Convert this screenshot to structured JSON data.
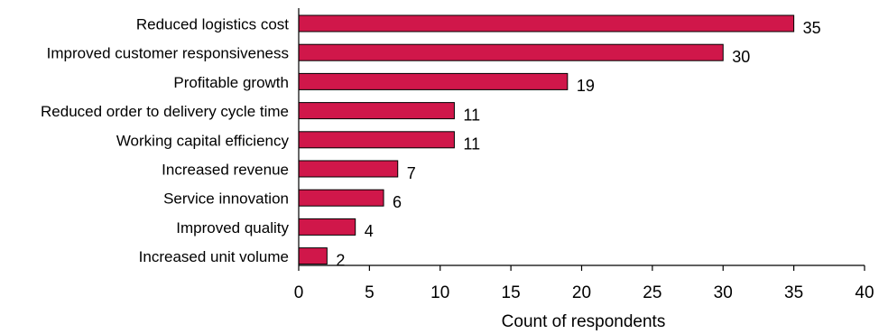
{
  "chart_data": {
    "type": "bar",
    "orientation": "horizontal",
    "title": "",
    "xlabel": "Count of respondents",
    "ylabel": "",
    "xlim": [
      0,
      40
    ],
    "xticks": [
      "0",
      "5",
      "10",
      "15",
      "20",
      "25",
      "30",
      "35",
      "40"
    ],
    "grid": false,
    "bar_color": "#d0174a",
    "categories": [
      "Reduced logistics cost",
      "Improved customer responsiveness",
      "Profitable growth",
      "Reduced order to delivery cycle time",
      "Working capital efficiency",
      "Increased revenue",
      "Service innovation",
      "Improved quality",
      "Increased unit volume"
    ],
    "values": [
      35,
      30,
      19,
      11,
      11,
      7,
      6,
      4,
      2
    ]
  }
}
